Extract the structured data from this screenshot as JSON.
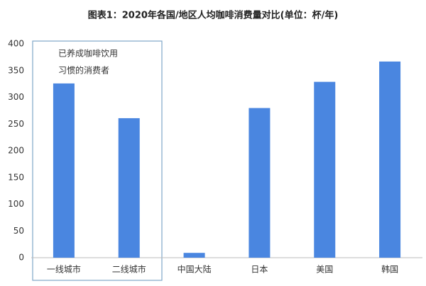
{
  "chart_data": {
    "type": "bar",
    "title": "图表1：2020年各国/地区人均咖啡消费量对比(单位：杯/年)",
    "categories": [
      "一线城市",
      "二线城市",
      "中国大陆",
      "日本",
      "美国",
      "韩国"
    ],
    "values": [
      326,
      261,
      9,
      280,
      329,
      367
    ],
    "color": "#4a86e0",
    "ylim": [
      0,
      400
    ],
    "yticks": [
      0,
      50,
      100,
      150,
      200,
      250,
      300,
      350,
      400
    ],
    "grid": false,
    "annotation": [
      "已养成咖啡饮用",
      "习惯的消费者"
    ]
  }
}
